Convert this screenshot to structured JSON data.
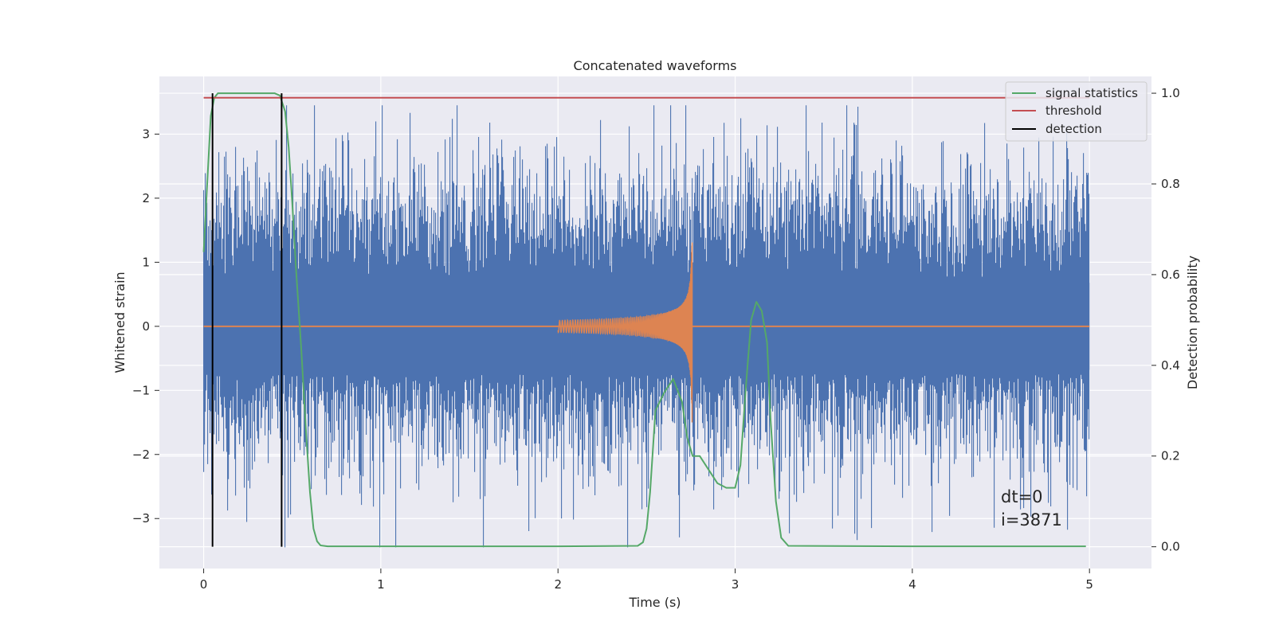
{
  "chart_data": {
    "type": "line",
    "title": "Concatenated waveforms",
    "xlabel": "Time (s)",
    "ylabel": "Whitened strain",
    "y2label": "Detection probability",
    "xlim": [
      -0.25,
      5.35
    ],
    "ylim": [
      -3.78,
      3.9
    ],
    "y2lim": [
      -0.048,
      1.037
    ],
    "xticks": [
      0,
      1,
      2,
      3,
      4,
      5
    ],
    "yticks": [
      -3,
      -2,
      -1,
      0,
      1,
      2,
      3
    ],
    "y2ticks": [
      0.0,
      0.2,
      0.4,
      0.6,
      0.8,
      1.0
    ],
    "grid": true,
    "legend_position": "top-right",
    "legend": [
      {
        "name": "signal statistics",
        "color": "#55a868"
      },
      {
        "name": "threshold",
        "color": "#c44e52"
      },
      {
        "name": "detection",
        "color": "#000000"
      }
    ],
    "annotations": [
      "dt=0",
      "i=3871"
    ],
    "colors": {
      "noise": "#4c72b0",
      "waveform": "#dd8452",
      "background": "#eaeaf2"
    },
    "series": [
      {
        "name": "signal statistics",
        "axis": "right",
        "color": "#55a868",
        "x": [
          0.0,
          0.02,
          0.04,
          0.06,
          0.08,
          0.1,
          0.2,
          0.3,
          0.4,
          0.43,
          0.46,
          0.48,
          0.5,
          0.52,
          0.55,
          0.58,
          0.6,
          0.62,
          0.64,
          0.66,
          0.7,
          1.0,
          2.0,
          2.45,
          2.48,
          2.5,
          2.52,
          2.55,
          2.6,
          2.65,
          2.7,
          2.73,
          2.76,
          2.8,
          2.85,
          2.9,
          2.95,
          3.0,
          3.03,
          3.06,
          3.09,
          3.12,
          3.15,
          3.18,
          3.2,
          3.23,
          3.26,
          3.3,
          4.0,
          4.98
        ],
        "y": [
          0.65,
          0.8,
          0.95,
          0.99,
          1.0,
          1.0,
          1.0,
          1.0,
          1.0,
          0.995,
          0.96,
          0.88,
          0.76,
          0.62,
          0.44,
          0.24,
          0.12,
          0.04,
          0.012,
          0.003,
          0.001,
          0.001,
          0.001,
          0.002,
          0.01,
          0.04,
          0.12,
          0.3,
          0.34,
          0.37,
          0.32,
          0.24,
          0.2,
          0.2,
          0.17,
          0.14,
          0.13,
          0.13,
          0.18,
          0.35,
          0.5,
          0.54,
          0.52,
          0.45,
          0.28,
          0.1,
          0.02,
          0.002,
          0.001,
          0.001
        ]
      },
      {
        "name": "threshold",
        "axis": "right",
        "color": "#c44e52",
        "x": [
          0.0,
          5.0
        ],
        "y": [
          0.99,
          0.99
        ]
      },
      {
        "name": "detection",
        "axis": "right",
        "color": "#000000",
        "x": [
          0.05,
          0.44
        ],
        "y": [
          0.0,
          1.0
        ]
      },
      {
        "name": "",
        "axis": "left",
        "color": "#4c72b0",
        "kind": "noise",
        "x_range": [
          0.0,
          5.0
        ],
        "approx_range": [
          -3.5,
          3.5
        ]
      },
      {
        "name": "",
        "axis": "left",
        "color": "#dd8452",
        "kind": "chirp",
        "x_range": [
          2.0,
          2.76
        ],
        "approx_range": [
          -1.5,
          1.3
        ]
      }
    ]
  }
}
